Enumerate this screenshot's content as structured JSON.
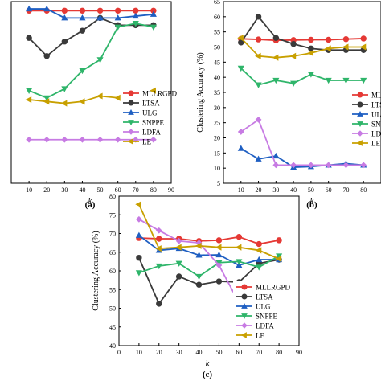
{
  "figure_labels": [
    "(a)",
    "(b)",
    "(c)"
  ],
  "colors": {
    "MLLRGPD": "#e53935",
    "LTSA": "#3a3a3a",
    "ULG": "#1f5fc2",
    "SNPPE": "#2fb56a",
    "LDFA": "#c77be3",
    "LE": "#c8a000"
  },
  "chart_data": [
    {
      "type": "line",
      "panel": "(a)",
      "xlabel": "k",
      "ylabel": "",
      "xlim": [
        0,
        90
      ],
      "xticks": [
        10,
        20,
        30,
        40,
        50,
        60,
        70,
        80,
        90
      ],
      "ylim": [
        0,
        100
      ],
      "yticks": [],
      "legend": "right",
      "legend_entries": [
        "MLLRGPD",
        "LTSA",
        "ULG",
        "SNPPE",
        "LDFA",
        "LE"
      ],
      "x": [
        10,
        20,
        30,
        40,
        50,
        60,
        70,
        80
      ],
      "series": [
        {
          "name": "MLLRGPD",
          "marker": "circle",
          "values": [
            95,
            95,
            95,
            95,
            95,
            95,
            95,
            95
          ]
        },
        {
          "name": "LTSA",
          "marker": "circle",
          "values": [
            80,
            70,
            78,
            84,
            91,
            87,
            87,
            87
          ]
        },
        {
          "name": "ULG",
          "marker": "triangle",
          "values": [
            96,
            96,
            91,
            91,
            91,
            91,
            92,
            93
          ]
        },
        {
          "name": "SNPPE",
          "marker": "tri-down",
          "values": [
            51,
            47,
            52,
            62,
            68,
            86,
            88,
            86
          ]
        },
        {
          "name": "LDFA",
          "marker": "diamond",
          "values": [
            24,
            24,
            24,
            24,
            24,
            24,
            24,
            24
          ]
        },
        {
          "name": "LE",
          "marker": "diamond-left",
          "values": [
            46,
            45,
            44,
            45,
            48,
            47,
            null,
            51
          ]
        }
      ]
    },
    {
      "type": "line",
      "panel": "(b)",
      "xlabel": "k",
      "ylabel": "Clustering Accuracy (%)",
      "xlim": [
        0,
        90
      ],
      "xticks": [
        10,
        20,
        30,
        40,
        50,
        60,
        70,
        80
      ],
      "ylim": [
        5,
        65
      ],
      "yticks": [
        5,
        10,
        15,
        20,
        25,
        30,
        35,
        40,
        45,
        50,
        55,
        60,
        65
      ],
      "legend": "right",
      "legend_entries": [
        "MLLRGPD",
        "LTSA",
        "ULG",
        "SNPPE",
        "LDFA",
        "LE"
      ],
      "x": [
        10,
        20,
        30,
        40,
        50,
        60,
        70,
        80
      ],
      "series": [
        {
          "name": "MLLRGPD",
          "marker": "circle",
          "values": [
            52.7,
            52.5,
            52.2,
            52.3,
            52.4,
            52.4,
            52.6,
            52.8
          ]
        },
        {
          "name": "LTSA",
          "marker": "circle",
          "values": [
            51.5,
            60,
            53,
            51,
            49.5,
            49,
            49,
            49
          ]
        },
        {
          "name": "ULG",
          "marker": "triangle",
          "values": [
            16.5,
            13,
            14,
            10.3,
            10.5,
            11,
            11.5,
            11
          ]
        },
        {
          "name": "SNPPE",
          "marker": "tri-down",
          "values": [
            43,
            37.5,
            39,
            38,
            41,
            39,
            39,
            39
          ]
        },
        {
          "name": "LDFA",
          "marker": "diamond",
          "values": [
            22,
            26,
            11,
            11,
            11,
            11,
            11,
            11
          ]
        },
        {
          "name": "LE",
          "marker": "diamond-left",
          "values": [
            53,
            47,
            46.5,
            47,
            48,
            49.5,
            50,
            50
          ]
        }
      ]
    },
    {
      "type": "line",
      "panel": "(c)",
      "xlabel": "k",
      "ylabel": "Clustering Accuracy (%)",
      "xlim": [
        0,
        90
      ],
      "xticks": [
        0,
        10,
        20,
        30,
        40,
        50,
        60,
        70,
        80,
        90
      ],
      "ylim": [
        40,
        80
      ],
      "yticks": [
        40,
        45,
        50,
        55,
        60,
        65,
        70,
        75,
        80
      ],
      "legend": "right",
      "legend_entries": [
        "MLLRGPD",
        "LTSA",
        "ULG",
        "SNPPE",
        "LDFA",
        "LE"
      ],
      "x": [
        10,
        20,
        30,
        40,
        50,
        60,
        70,
        80
      ],
      "series": [
        {
          "name": "MLLRGPD",
          "marker": "circle",
          "values": [
            68.8,
            68.6,
            68.6,
            68,
            68.2,
            69.1,
            67.2,
            68.2
          ]
        },
        {
          "name": "LTSA",
          "marker": "circle",
          "values": [
            63.5,
            51.2,
            58.5,
            56.3,
            57.2,
            57,
            62,
            63
          ]
        },
        {
          "name": "ULG",
          "marker": "triangle",
          "values": [
            69.5,
            65.5,
            66,
            64.2,
            64.3,
            61.5,
            63,
            63
          ]
        },
        {
          "name": "SNPPE",
          "marker": "tri-down",
          "values": [
            59.5,
            61.3,
            62,
            58.5,
            62.2,
            62.5,
            61,
            64
          ]
        },
        {
          "name": "LDFA",
          "marker": "diamond",
          "values": [
            73.8,
            70.8,
            68,
            67.5,
            61.5,
            51.5,
            null,
            null
          ]
        },
        {
          "name": "LE",
          "marker": "diamond-left",
          "values": [
            77.8,
            66,
            66.3,
            66.7,
            66.3,
            66.3,
            65.5,
            63.2
          ]
        }
      ]
    }
  ]
}
